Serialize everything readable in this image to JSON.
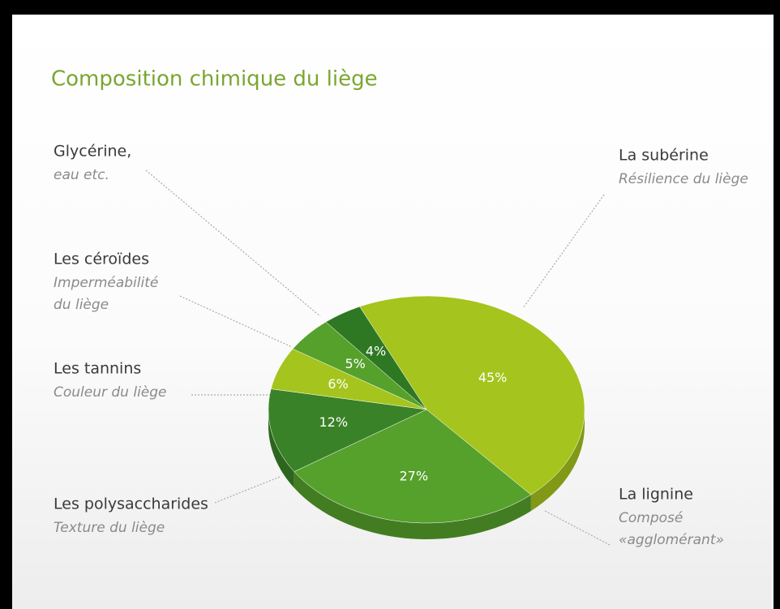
{
  "chart_data": {
    "type": "pie",
    "title": "Composition chimique du liège",
    "categories": [
      "La subérine",
      "La lignine",
      "Les polysaccharides",
      "Les tannins",
      "Les céroïdes",
      "Glycérine,"
    ],
    "descriptions": [
      [
        "Résilience du liège"
      ],
      [
        "Composé",
        "«agglomérant»"
      ],
      [
        "Texture du liège"
      ],
      [
        "Couleur du liège"
      ],
      [
        "Imperméabilité",
        "du liège"
      ],
      [
        "eau etc."
      ]
    ],
    "values": [
      45,
      27,
      12,
      6,
      5,
      4
    ],
    "value_labels": [
      "45%",
      "27%",
      "12%",
      "6%",
      "5%",
      "4%"
    ],
    "colors": [
      "#a5c41d",
      "#56a02c",
      "#3a8227",
      "#a5c41d",
      "#56a02c",
      "#2f7823"
    ]
  }
}
